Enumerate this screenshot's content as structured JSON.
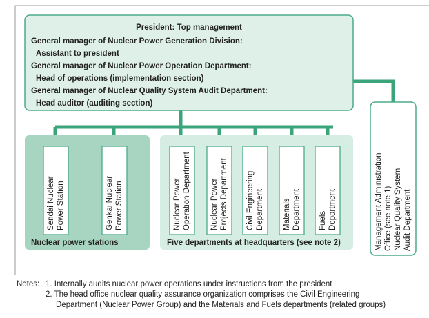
{
  "top_box": {
    "title": "President: Top management",
    "lines": [
      "General manager of Nuclear Power Generation Division:",
      "Assistant to president",
      "General manager of Nuclear Power Operation Department:",
      "Head of operations (implementation section)",
      "General manager of Nuclear Quality System Audit Department:",
      "Head auditor (auditing section)"
    ]
  },
  "groups": [
    {
      "label": "Nuclear power stations",
      "units": [
        {
          "lines": [
            "Sendai Nuclear",
            "Power Station"
          ]
        },
        {
          "lines": [
            "Genkai Nuclear",
            "Power Station"
          ]
        }
      ]
    },
    {
      "label": "Five departments at headquarters (see note 2)",
      "units": [
        {
          "lines": [
            "Nuclear Power",
            "Operation Department"
          ]
        },
        {
          "lines": [
            "Nuclear Power",
            "Projects Department"
          ]
        },
        {
          "lines": [
            "Civil Engineering",
            "Department"
          ]
        },
        {
          "lines": [
            "Materials",
            "Department"
          ]
        },
        {
          "lines": [
            "Fuels",
            "Department"
          ]
        }
      ]
    }
  ],
  "side_box": {
    "lines": [
      "Management Administration",
      "Office (see note 1)",
      "Nuclear Quality System",
      "Audit Department"
    ]
  },
  "notes": {
    "label": "Notes:",
    "items": [
      [
        "1. Internally audits nuclear power operations under instructions from the president"
      ],
      [
        "2. The head office nuclear quality assurance organization comprises the Civil Engineering",
        "Department (Nuclear Power Group) and the Materials and Fuels departments (related groups)"
      ]
    ]
  }
}
